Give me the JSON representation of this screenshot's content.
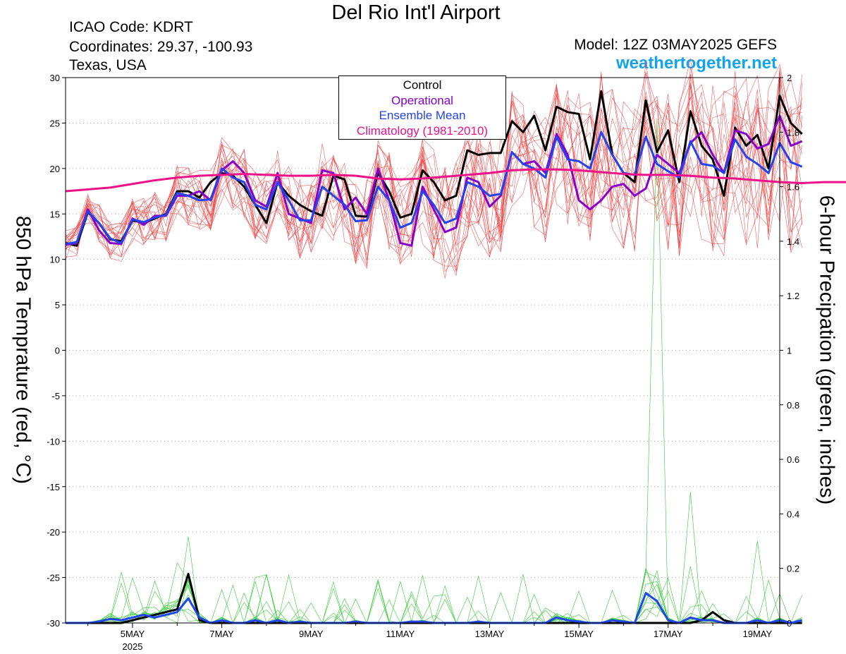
{
  "header": {
    "title": "Del Rio Int'l Airport",
    "icao": "ICAO Code: KDRT",
    "coordinates": "Coordinates: 29.37, -100.93",
    "region": "Texas, USA",
    "model": "Model: 12Z 03MAY2025 GEFS",
    "site": "weathertogether.net"
  },
  "colors": {
    "control": "#000000",
    "operational": "#8800cc",
    "ensemble_mean": "#2244ee",
    "climatology": "#ee1188",
    "members": "#ee4444",
    "precip_members": "#33cc33"
  },
  "chart_data": {
    "type": "line",
    "title": "Del Rio Int'l Airport",
    "ylabel_left": "850 hPa Temprature (red, °C)",
    "ylabel_right": "6-hour Precipation (green, inches)",
    "y_left_range": [
      -30,
      30
    ],
    "y_right_range": [
      0,
      2
    ],
    "y_left_ticks": [
      -30,
      -25,
      -20,
      -15,
      -10,
      -5,
      0,
      5,
      10,
      15,
      20,
      25,
      30
    ],
    "y_right_ticks": [
      0,
      0.2,
      0.4,
      0.6,
      0.8,
      1,
      1.2,
      1.4,
      1.6,
      1.8,
      2
    ],
    "x_range_days": [
      3.5,
      19.5
    ],
    "x_ticks": [
      {
        "day": 5,
        "label": "5MAY",
        "sub": "2025"
      },
      {
        "day": 7,
        "label": "7MAY"
      },
      {
        "day": 9,
        "label": "9MAY"
      },
      {
        "day": 11,
        "label": "11MAY"
      },
      {
        "day": 13,
        "label": "13MAY"
      },
      {
        "day": 15,
        "label": "15MAY"
      },
      {
        "day": 17,
        "label": "17MAY"
      },
      {
        "day": 19,
        "label": "19MAY"
      }
    ],
    "grid": "dotted horizontal",
    "legend": [
      "Control",
      "Operational",
      "Ensemble Mean",
      "Climatology (1981-2010)"
    ],
    "legend_position": "top-center",
    "step_days": 0.25,
    "x_start_day": 3.5,
    "series": [
      {
        "name": "Control",
        "axis": "left",
        "values": [
          11.8,
          11.5,
          15.2,
          14.0,
          12.2,
          12.0,
          14.3,
          14.0,
          14.5,
          15.0,
          17.5,
          17.5,
          16.8,
          18.5,
          19.5,
          19.2,
          18.0,
          16.0,
          14.0,
          18.5,
          17.0,
          16.0,
          15.3,
          14.8,
          19.2,
          18.8,
          14.8,
          14.7,
          19.5,
          17.5,
          14.6,
          15.0,
          19.8,
          18.5,
          16.5,
          17.0,
          22.0,
          21.5,
          21.7,
          21.7,
          25.2,
          24.0,
          25.8,
          22.0,
          26.8,
          26.2,
          26.0,
          21.0,
          28.5,
          21.5,
          19.5,
          18.5,
          27.5,
          21.8,
          24.2,
          18.5,
          26.3,
          22.5,
          21.0,
          17.0,
          24.5,
          22.5,
          23.7,
          20.0,
          28.0,
          25.0,
          23.8
        ]
      },
      {
        "name": "Operational",
        "axis": "left",
        "values": [
          11.6,
          11.8,
          15.5,
          13.2,
          11.8,
          11.7,
          14.5,
          13.8,
          14.8,
          14.8,
          17.0,
          17.0,
          17.5,
          16.5,
          19.8,
          20.8,
          19.5,
          16.5,
          15.8,
          19.5,
          15.0,
          14.5,
          14.0,
          19.8,
          19.5,
          15.5,
          16.8,
          15.0,
          20.0,
          16.5,
          11.8,
          11.5,
          18.0,
          15.5,
          13.0,
          13.5,
          19.0,
          18.5,
          15.8,
          17.0,
          21.8,
          20.5,
          20.8,
          19.5,
          23.8,
          21.5,
          16.5,
          15.5,
          16.5,
          18.0,
          18.3,
          17.0,
          17.8,
          21.5,
          20.5,
          19.5,
          22.8,
          24.0,
          21.5,
          19.5,
          24.2,
          23.8,
          22.2,
          22.7,
          25.8,
          22.5,
          23.0
        ]
      },
      {
        "name": "Ensemble Mean",
        "axis": "left",
        "values": [
          11.7,
          11.9,
          15.3,
          14.0,
          12.3,
          11.8,
          14.4,
          14.1,
          14.6,
          14.9,
          17.3,
          17.0,
          16.5,
          16.6,
          20.0,
          19.0,
          18.5,
          16.0,
          15.5,
          18.5,
          16.5,
          14.3,
          14.3,
          18.0,
          17.0,
          16.0,
          14.2,
          14.3,
          18.0,
          16.5,
          13.5,
          14.0,
          17.5,
          16.0,
          14.0,
          14.5,
          18.5,
          18.0,
          17.0,
          17.2,
          21.8,
          20.5,
          20.0,
          19.0,
          23.5,
          21.0,
          20.8,
          20.0,
          24.0,
          21.5,
          19.5,
          19.3,
          23.5,
          20.5,
          19.7,
          19.0,
          23.0,
          20.5,
          20.3,
          19.5,
          23.2,
          21.3,
          20.5,
          19.5,
          22.8,
          20.7,
          20.2
        ]
      },
      {
        "name": "Climatology (1981-2010)",
        "axis": "left",
        "values": [
          17.5,
          17.7,
          17.9,
          18.3,
          18.7,
          19.0,
          19.2,
          19.3,
          19.4,
          19.3,
          19.2,
          19.2,
          19.3,
          19.2,
          18.9,
          18.8,
          18.9,
          19.1,
          19.3,
          19.5,
          19.8,
          19.9,
          19.9,
          19.8,
          19.6,
          19.4,
          19.3,
          19.3,
          19.2,
          19.0,
          18.9,
          18.7,
          18.5,
          18.4,
          18.5,
          18.5
        ],
        "step_days": 0.5
      },
      {
        "name": "Control precip",
        "axis": "right",
        "values": [
          0,
          0,
          0,
          0,
          0,
          0,
          0.01,
          0.02,
          0.03,
          0.04,
          0.05,
          0.18,
          0.01,
          0,
          0,
          0,
          0,
          0,
          0,
          0,
          0,
          0,
          0,
          0,
          0,
          0,
          0,
          0,
          0,
          0,
          0,
          0,
          0,
          0,
          0,
          0,
          0,
          0,
          0,
          0,
          0,
          0,
          0,
          0,
          0,
          0,
          0,
          0,
          0,
          0,
          0,
          0,
          0,
          0,
          0,
          0,
          0,
          0.01,
          0.04,
          0.01,
          0,
          0,
          0,
          0,
          0,
          0,
          0
        ]
      },
      {
        "name": "Ensemble Mean precip",
        "axis": "right",
        "values": [
          0,
          0,
          0,
          0.005,
          0.015,
          0.01,
          0.02,
          0.03,
          0.02,
          0.03,
          0.04,
          0.09,
          0.02,
          0,
          0.01,
          0,
          0,
          0.01,
          0,
          0.01,
          0,
          0.005,
          0,
          0,
          0,
          0,
          0.005,
          0,
          0,
          0,
          0,
          0.005,
          0.005,
          0,
          0,
          0,
          0,
          0.005,
          0,
          0,
          0,
          0,
          0,
          0,
          0.02,
          0.01,
          0.005,
          0,
          0,
          0.01,
          0.005,
          0,
          0.11,
          0.08,
          0.01,
          0,
          0.02,
          0.01,
          0.01,
          0,
          0,
          0,
          0.01,
          0,
          0.01,
          0,
          0.01
        ]
      }
    ]
  }
}
